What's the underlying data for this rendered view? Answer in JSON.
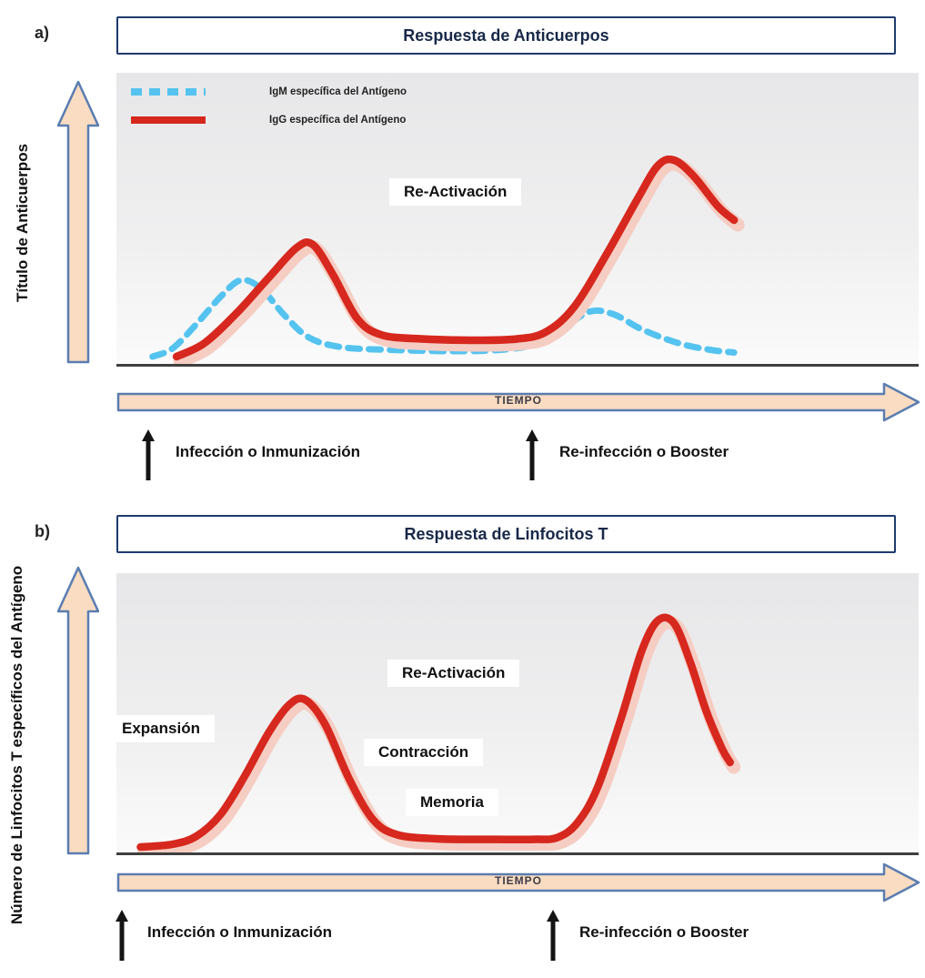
{
  "colors": {
    "arrow_fill": "#fadcc2",
    "arrow_border": "#5a7db0",
    "title_border": "#1e3a6e",
    "baseline": "#3f3f3f",
    "curve_glow": "#f6cdc3",
    "plot_bg_top": "#e7e7e9",
    "plot_bg_bottom": "#fbfbfb"
  },
  "chart_data": [
    {
      "type": "line",
      "panel_label": "a)",
      "title": "Respuesta de Anticuerpos",
      "xlabel": "TIEMPO",
      "ylabel": "Título de Anticuerpos",
      "x_range": [
        0,
        1
      ],
      "y_range": [
        0,
        1
      ],
      "grid": false,
      "legend_position": "top-left-inside",
      "series": [
        {
          "name": "IgM específica del Antígeno",
          "style": "dashed",
          "color": "#55c3ef",
          "points": [
            [
              0.045,
              0
            ],
            [
              0.07,
              0.03
            ],
            [
              0.1,
              0.12
            ],
            [
              0.13,
              0.22
            ],
            [
              0.155,
              0.28
            ],
            [
              0.18,
              0.25
            ],
            [
              0.21,
              0.15
            ],
            [
              0.24,
              0.07
            ],
            [
              0.28,
              0.035
            ],
            [
              0.34,
              0.025
            ],
            [
              0.42,
              0.02
            ],
            [
              0.48,
              0.025
            ],
            [
              0.52,
              0.045
            ],
            [
              0.555,
              0.1
            ],
            [
              0.59,
              0.165
            ],
            [
              0.62,
              0.155
            ],
            [
              0.655,
              0.1
            ],
            [
              0.7,
              0.05
            ],
            [
              0.74,
              0.025
            ],
            [
              0.77,
              0.015
            ]
          ]
        },
        {
          "name": "IgG específica del Antígeno",
          "style": "solid",
          "color": "#d6281e",
          "points": [
            [
              0.075,
              0
            ],
            [
              0.11,
              0.05
            ],
            [
              0.15,
              0.16
            ],
            [
              0.19,
              0.29
            ],
            [
              0.225,
              0.4
            ],
            [
              0.245,
              0.41
            ],
            [
              0.27,
              0.3
            ],
            [
              0.3,
              0.14
            ],
            [
              0.33,
              0.08
            ],
            [
              0.38,
              0.065
            ],
            [
              0.45,
              0.06
            ],
            [
              0.5,
              0.065
            ],
            [
              0.535,
              0.09
            ],
            [
              0.57,
              0.18
            ],
            [
              0.61,
              0.37
            ],
            [
              0.65,
              0.58
            ],
            [
              0.675,
              0.7
            ],
            [
              0.695,
              0.72
            ],
            [
              0.72,
              0.66
            ],
            [
              0.75,
              0.55
            ],
            [
              0.77,
              0.5
            ]
          ]
        }
      ],
      "annotations": {
        "reactivation": "Re-Activación"
      },
      "event_markers": [
        {
          "x": 0.035,
          "label": "Infección o Inmunización"
        },
        {
          "x": 0.515,
          "label": "Re-infección o Booster"
        }
      ]
    },
    {
      "type": "line",
      "panel_label": "b)",
      "title": "Respuesta de Linfocitos T",
      "xlabel": "TIEMPO",
      "ylabel": "Número de Linfocitos T específicos del Antígeno",
      "x_range": [
        0,
        1
      ],
      "y_range": [
        0,
        1
      ],
      "grid": false,
      "series": [
        {
          "style": "solid",
          "color": "#d6281e",
          "points": [
            [
              0.03,
              0
            ],
            [
              0.07,
              0.01
            ],
            [
              0.1,
              0.04
            ],
            [
              0.13,
              0.12
            ],
            [
              0.16,
              0.26
            ],
            [
              0.19,
              0.42
            ],
            [
              0.215,
              0.52
            ],
            [
              0.235,
              0.54
            ],
            [
              0.26,
              0.45
            ],
            [
              0.29,
              0.25
            ],
            [
              0.32,
              0.1
            ],
            [
              0.35,
              0.045
            ],
            [
              0.4,
              0.03
            ],
            [
              0.46,
              0.028
            ],
            [
              0.52,
              0.028
            ],
            [
              0.55,
              0.035
            ],
            [
              0.575,
              0.09
            ],
            [
              0.6,
              0.22
            ],
            [
              0.63,
              0.48
            ],
            [
              0.655,
              0.72
            ],
            [
              0.675,
              0.83
            ],
            [
              0.695,
              0.82
            ],
            [
              0.715,
              0.68
            ],
            [
              0.735,
              0.5
            ],
            [
              0.755,
              0.36
            ],
            [
              0.765,
              0.31
            ]
          ]
        }
      ],
      "annotations": {
        "expansion": "Expansión",
        "reactivation": "Re-Activación",
        "contraction": "Contracción",
        "memory": "Memoria"
      },
      "event_markers": [
        {
          "x": 0.005,
          "label": "Infección o Inmunización"
        },
        {
          "x": 0.545,
          "label": "Re-infección o Booster"
        }
      ]
    }
  ]
}
